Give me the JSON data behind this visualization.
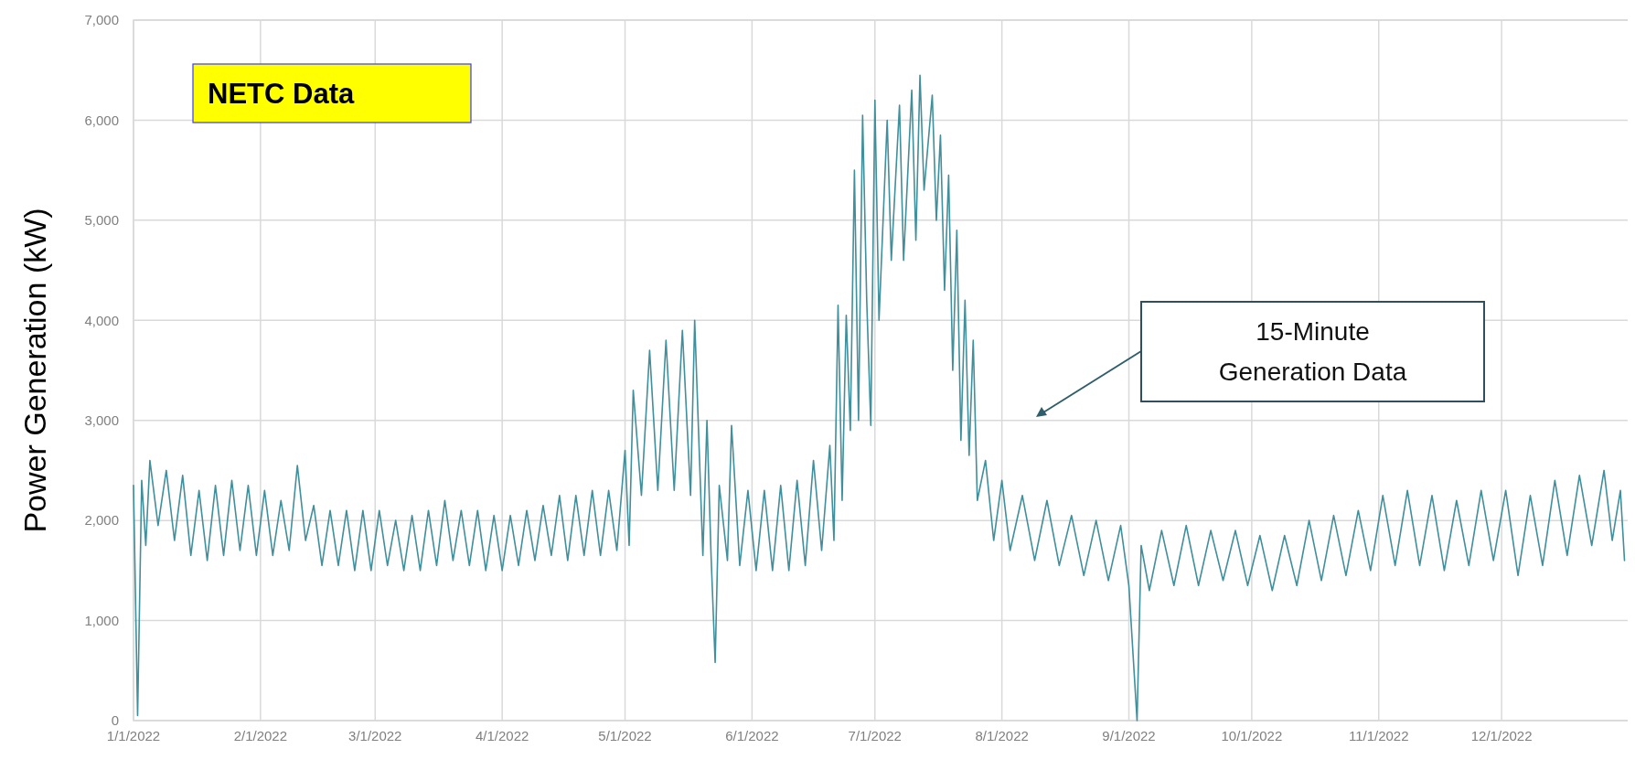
{
  "chart_data": {
    "type": "line",
    "ylabel": "Power Generation (kW)",
    "annotations": [
      "NETC Data",
      "15-Minute\nGeneration Data"
    ],
    "xlim": [
      "2022-01-01",
      "2023-01-01"
    ],
    "xticks": [
      {
        "value": "2022-01-01",
        "label": "1/1/2022"
      },
      {
        "value": "2022-02-01",
        "label": "2/1/2022"
      },
      {
        "value": "2022-03-01",
        "label": "3/1/2022"
      },
      {
        "value": "2022-04-01",
        "label": "4/1/2022"
      },
      {
        "value": "2022-05-01",
        "label": "5/1/2022"
      },
      {
        "value": "2022-06-01",
        "label": "6/1/2022"
      },
      {
        "value": "2022-07-01",
        "label": "7/1/2022"
      },
      {
        "value": "2022-08-01",
        "label": "8/1/2022"
      },
      {
        "value": "2022-09-01",
        "label": "9/1/2022"
      },
      {
        "value": "2022-10-01",
        "label": "10/1/2022"
      },
      {
        "value": "2022-11-01",
        "label": "11/1/2022"
      },
      {
        "value": "2022-12-01",
        "label": "12/1/2022"
      }
    ],
    "ylim": [
      0,
      7000
    ],
    "yticks": [
      0,
      {
        "value": 1000,
        "label": "1,000"
      },
      {
        "value": 2000,
        "label": "2,000"
      },
      {
        "value": 3000,
        "label": "3,000"
      },
      {
        "value": 4000,
        "label": "4,000"
      },
      {
        "value": 5000,
        "label": "5,000"
      },
      {
        "value": 6000,
        "label": "6,000"
      },
      {
        "value": 7000,
        "label": "7,000"
      }
    ],
    "grid": true,
    "x": [
      "2022-01-01",
      "2022-01-02",
      "2022-01-03",
      "2022-01-04",
      "2022-01-05",
      "2022-01-07",
      "2022-01-09",
      "2022-01-11",
      "2022-01-13",
      "2022-01-15",
      "2022-01-17",
      "2022-01-19",
      "2022-01-21",
      "2022-01-23",
      "2022-01-25",
      "2022-01-27",
      "2022-01-29",
      "2022-01-31",
      "2022-02-02",
      "2022-02-04",
      "2022-02-06",
      "2022-02-08",
      "2022-02-10",
      "2022-02-12",
      "2022-02-14",
      "2022-02-16",
      "2022-02-18",
      "2022-02-20",
      "2022-02-22",
      "2022-02-24",
      "2022-02-26",
      "2022-02-28",
      "2022-03-02",
      "2022-03-04",
      "2022-03-06",
      "2022-03-08",
      "2022-03-10",
      "2022-03-12",
      "2022-03-14",
      "2022-03-16",
      "2022-03-18",
      "2022-03-20",
      "2022-03-22",
      "2022-03-24",
      "2022-03-26",
      "2022-03-28",
      "2022-03-30",
      "2022-04-01",
      "2022-04-03",
      "2022-04-05",
      "2022-04-07",
      "2022-04-09",
      "2022-04-11",
      "2022-04-13",
      "2022-04-15",
      "2022-04-17",
      "2022-04-19",
      "2022-04-21",
      "2022-04-23",
      "2022-04-25",
      "2022-04-27",
      "2022-04-29",
      "2022-05-01",
      "2022-05-02",
      "2022-05-03",
      "2022-05-05",
      "2022-05-07",
      "2022-05-09",
      "2022-05-11",
      "2022-05-13",
      "2022-05-15",
      "2022-05-17",
      "2022-05-18",
      "2022-05-20",
      "2022-05-21",
      "2022-05-22",
      "2022-05-23",
      "2022-05-24",
      "2022-05-26",
      "2022-05-27",
      "2022-05-29",
      "2022-05-31",
      "2022-06-02",
      "2022-06-04",
      "2022-06-06",
      "2022-06-08",
      "2022-06-10",
      "2022-06-12",
      "2022-06-14",
      "2022-06-16",
      "2022-06-18",
      "2022-06-20",
      "2022-06-21",
      "2022-06-22",
      "2022-06-23",
      "2022-06-24",
      "2022-06-25",
      "2022-06-26",
      "2022-06-27",
      "2022-06-28",
      "2022-06-29",
      "2022-06-30",
      "2022-07-01",
      "2022-07-02",
      "2022-07-04",
      "2022-07-05",
      "2022-07-07",
      "2022-07-08",
      "2022-07-10",
      "2022-07-11",
      "2022-07-12",
      "2022-07-13",
      "2022-07-15",
      "2022-07-16",
      "2022-07-17",
      "2022-07-18",
      "2022-07-19",
      "2022-07-20",
      "2022-07-21",
      "2022-07-22",
      "2022-07-23",
      "2022-07-24",
      "2022-07-25",
      "2022-07-26",
      "2022-07-28",
      "2022-07-30",
      "2022-08-01",
      "2022-08-03",
      "2022-08-06",
      "2022-08-09",
      "2022-08-12",
      "2022-08-15",
      "2022-08-18",
      "2022-08-21",
      "2022-08-24",
      "2022-08-27",
      "2022-08-30",
      "2022-09-01",
      "2022-09-03",
      "2022-09-04",
      "2022-09-06",
      "2022-09-09",
      "2022-09-12",
      "2022-09-15",
      "2022-09-18",
      "2022-09-21",
      "2022-09-24",
      "2022-09-27",
      "2022-09-30",
      "2022-10-03",
      "2022-10-06",
      "2022-10-09",
      "2022-10-12",
      "2022-10-15",
      "2022-10-18",
      "2022-10-21",
      "2022-10-24",
      "2022-10-27",
      "2022-10-30",
      "2022-11-02",
      "2022-11-05",
      "2022-11-08",
      "2022-11-11",
      "2022-11-14",
      "2022-11-17",
      "2022-11-20",
      "2022-11-23",
      "2022-11-26",
      "2022-11-29",
      "2022-12-02",
      "2022-12-05",
      "2022-12-08",
      "2022-12-11",
      "2022-12-14",
      "2022-12-17",
      "2022-12-20",
      "2022-12-23",
      "2022-12-26",
      "2022-12-28",
      "2022-12-30",
      "2022-12-31"
    ],
    "series": [
      {
        "color": "#3f8f9c",
        "values": [
          2350,
          50,
          2400,
          1750,
          2600,
          1950,
          2500,
          1800,
          2450,
          1650,
          2300,
          1600,
          2350,
          1650,
          2400,
          1700,
          2350,
          1650,
          2300,
          1650,
          2200,
          1700,
          2550,
          1800,
          2150,
          1550,
          2100,
          1550,
          2100,
          1500,
          2100,
          1500,
          2100,
          1550,
          2000,
          1500,
          2050,
          1500,
          2100,
          1550,
          2200,
          1600,
          2100,
          1550,
          2100,
          1500,
          2050,
          1500,
          2050,
          1550,
          2100,
          1600,
          2150,
          1650,
          2250,
          1600,
          2250,
          1650,
          2300,
          1650,
          2300,
          1700,
          2700,
          1750,
          3300,
          2250,
          3700,
          2300,
          3800,
          2300,
          3900,
          2250,
          4000,
          1650,
          3000,
          1650,
          580,
          2350,
          1600,
          2950,
          1550,
          2300,
          1500,
          2300,
          1500,
          2350,
          1500,
          2400,
          1550,
          2600,
          1700,
          2750,
          1800,
          4150,
          2200,
          4050,
          2900,
          5500,
          3000,
          6050,
          4200,
          2950,
          6200,
          4000,
          6000,
          4600,
          6150,
          4600,
          6300,
          4800,
          6450,
          5300,
          6250,
          5000,
          5850,
          4300,
          5450,
          3500,
          4900,
          2800,
          4200,
          2650,
          3800,
          2200,
          2600,
          1800,
          2400,
          1700,
          2250,
          1600,
          2200,
          1550,
          2050,
          1450,
          2000,
          1400,
          1950,
          1350,
          0,
          1750,
          1300,
          1900,
          1350,
          1950,
          1350,
          1900,
          1400,
          1900,
          1350,
          1850,
          1300,
          1850,
          1350,
          2000,
          1400,
          2050,
          1450,
          2100,
          1500,
          2250,
          1550,
          2300,
          1550,
          2250,
          1500,
          2200,
          1550,
          2300,
          1600,
          2300,
          1450,
          2250,
          1550,
          2400,
          1650,
          2450,
          1750,
          2500,
          1800,
          2300,
          1600
        ]
      }
    ]
  }
}
